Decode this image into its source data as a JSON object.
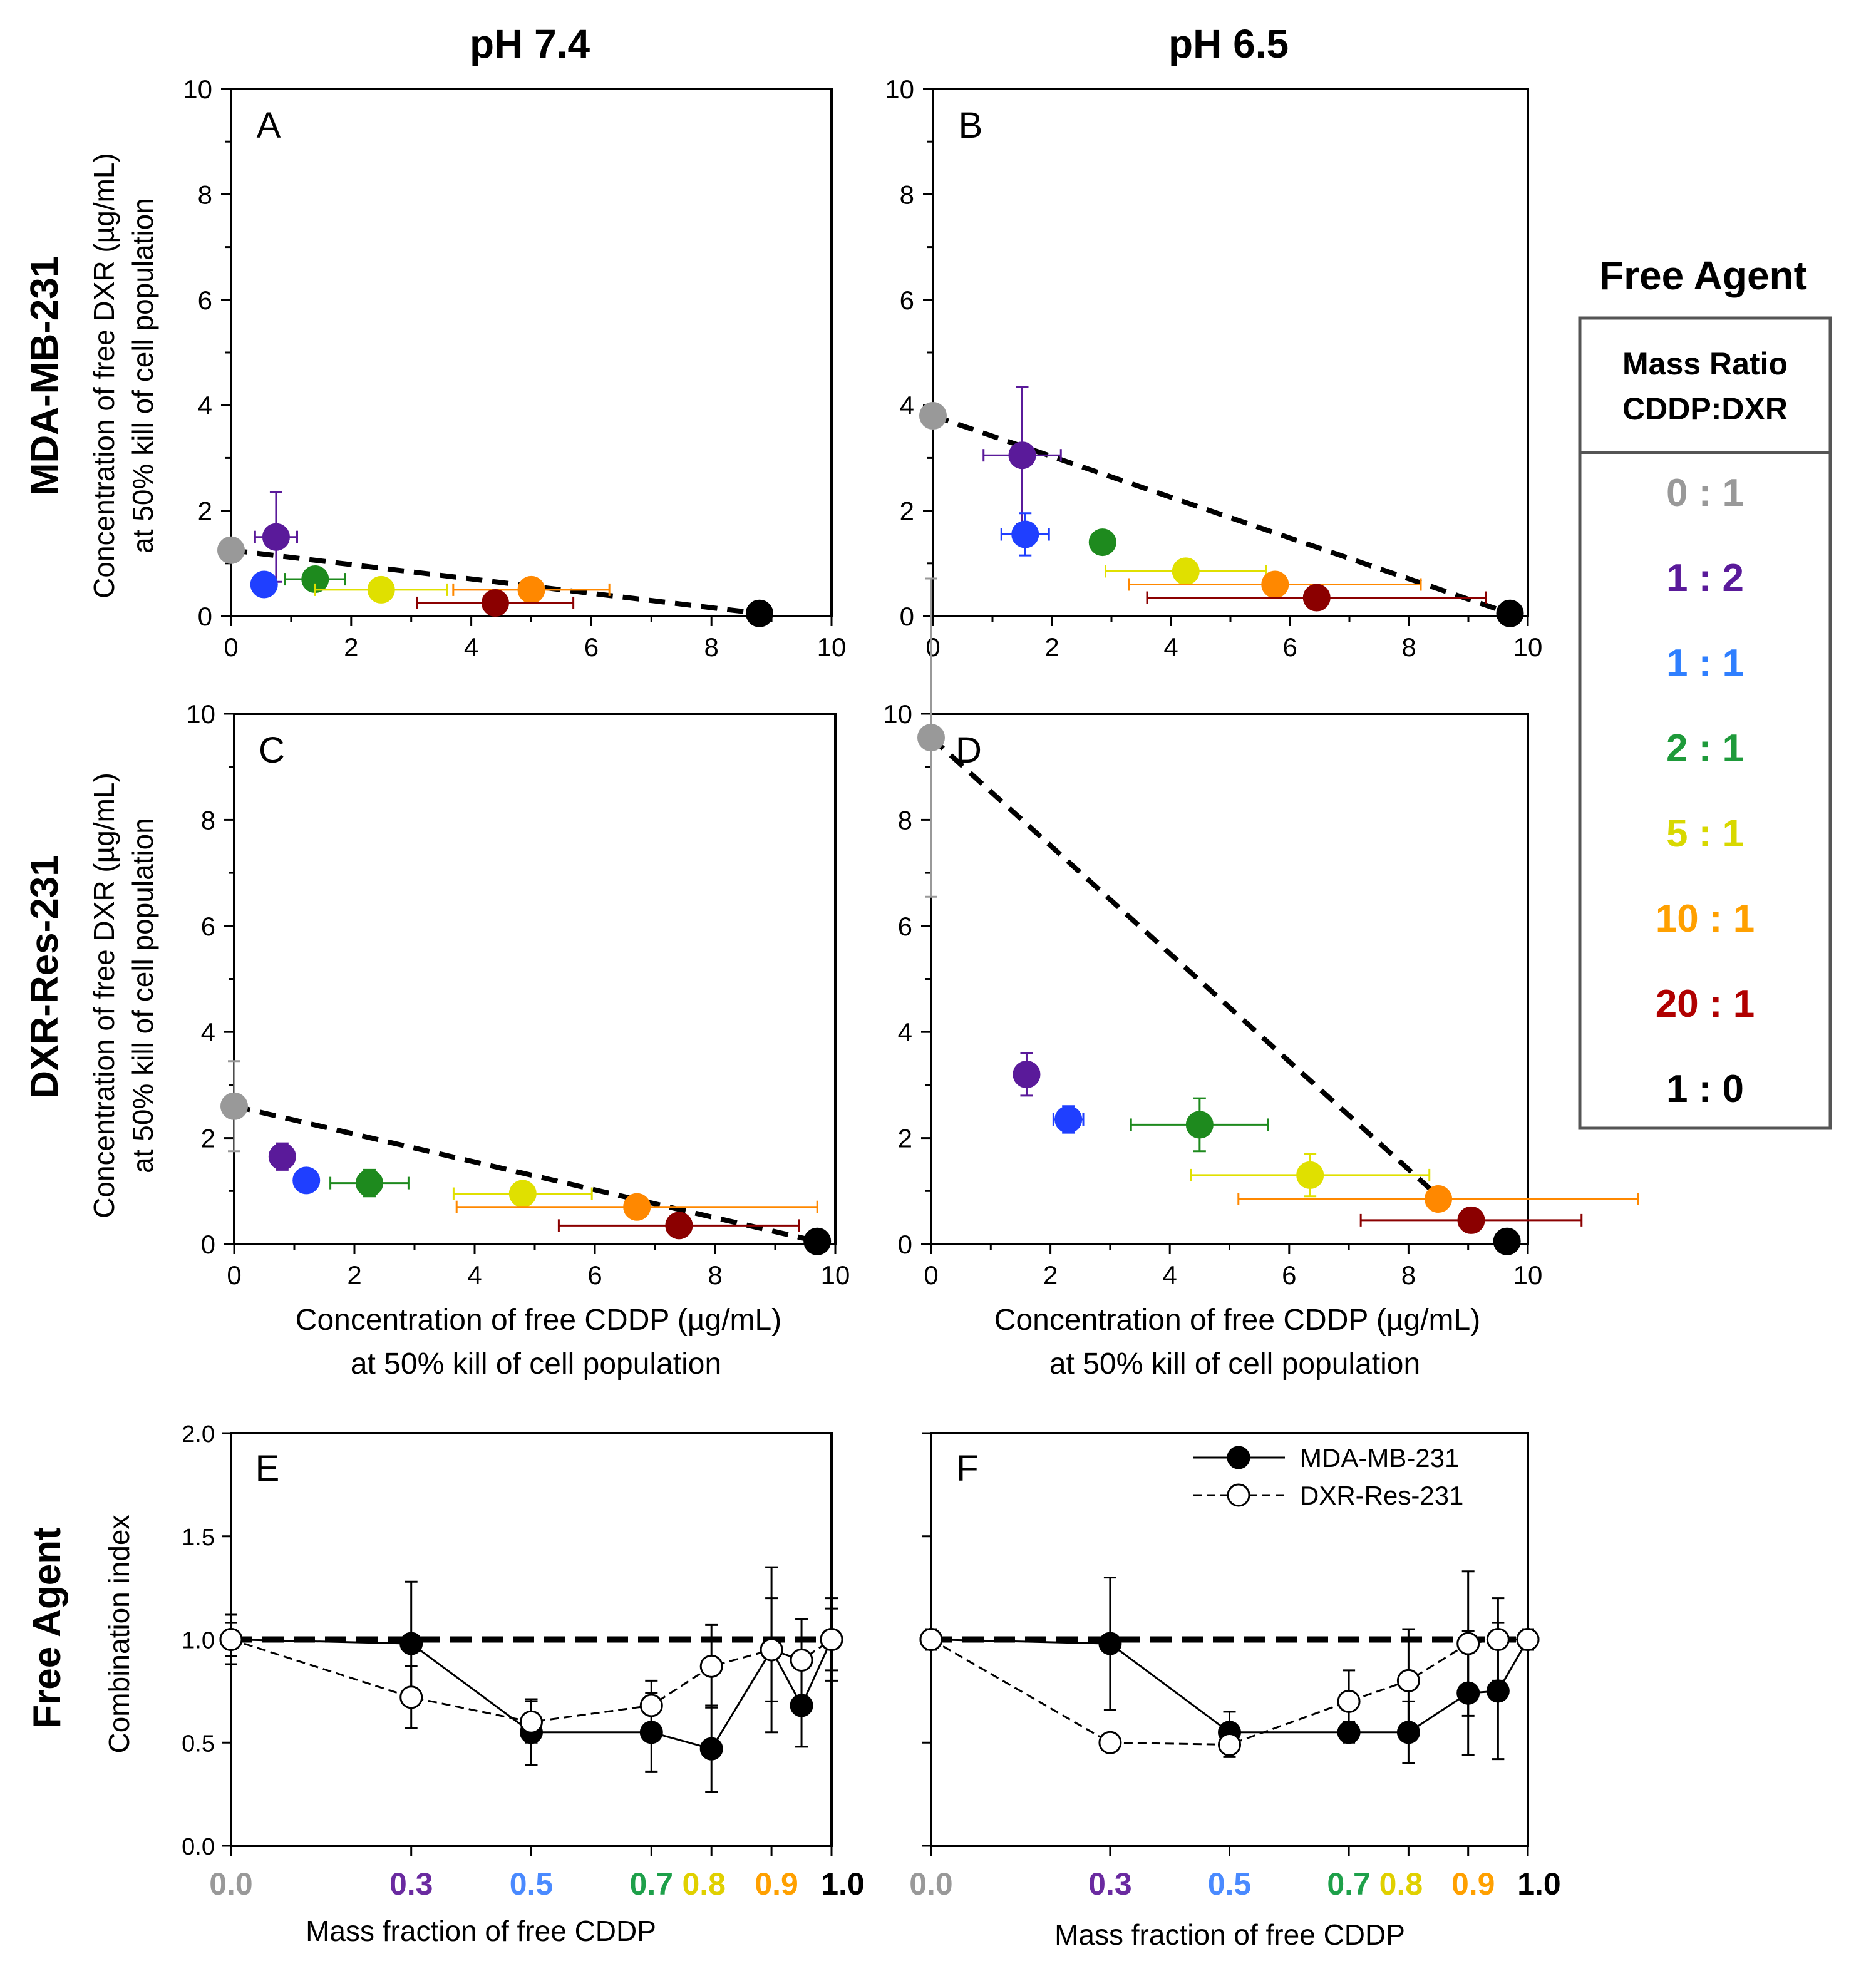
{
  "column_headers": [
    "pH 7.4",
    "pH 6.5"
  ],
  "row_headers": [
    "MDA-MB-231",
    "DXR-Res-231",
    "Free Agent"
  ],
  "colors": {
    "0:1": "#999999",
    "1:2": "#5a1a9a",
    "1:1": "#1f3fff",
    "2:1": "#1e8a1e",
    "5:1": "#e0e000",
    "10:1": "#ff8800",
    "20:1": "#8b0000",
    "1:0": "#000000"
  },
  "legend": {
    "title": "Free Agent",
    "header_line1": "Mass Ratio",
    "header_line2": "CDDP:DXR",
    "entries": [
      {
        "label": "0 : 1",
        "color": "#999999"
      },
      {
        "label": "1 : 2",
        "color": "#5a1a9a"
      },
      {
        "label": "1 : 1",
        "color": "#2f7fff"
      },
      {
        "label": "2 : 1",
        "color": "#1e9a3a"
      },
      {
        "label": "5 : 1",
        "color": "#d8d800"
      },
      {
        "label": "10 : 1",
        "color": "#ffa000"
      },
      {
        "label": "20 : 1",
        "color": "#b00000"
      },
      {
        "label": "1 : 0",
        "color": "#000000"
      }
    ]
  },
  "iso_axes": {
    "xlabel_line1": "Concentration of free CDDP (µg/mL)",
    "xlabel_line2": "at 50% kill of cell population",
    "ylabel_line1": "Concentration of free DXR (µg/mL)",
    "ylabel_line2": "at 50% kill of cell population",
    "ticks": [
      "0",
      "2",
      "4",
      "6",
      "8",
      "10"
    ]
  },
  "ci_axes": {
    "xlabel": "Mass fraction of free CDDP",
    "ylabel": "Combination index",
    "yticks": [
      "0.0",
      "0.5",
      "1.0",
      "1.5",
      "2.0"
    ],
    "xticks": [
      {
        "label": "0.0",
        "value": 0.0,
        "color": "#999999"
      },
      {
        "label": "0.3",
        "value": 0.3,
        "color": "#6a2aa0"
      },
      {
        "label": "0.5",
        "value": 0.5,
        "color": "#4a8aff"
      },
      {
        "label": "0.7",
        "value": 0.7,
        "color": "#1ea04a"
      },
      {
        "label": "0.8",
        "value": 0.8,
        "color": "#e0d000"
      },
      {
        "label": "0.9",
        "value": 0.9,
        "color": "#ffa000"
      },
      {
        "label": "1.0",
        "value": 1.0,
        "color": "#000000"
      }
    ],
    "legend": [
      "MDA-MB-231",
      "DXR-Res-231"
    ]
  },
  "chart_data": [
    {
      "panel": "A",
      "type": "scatter",
      "title": "pH 7.4 / MDA-MB-231",
      "xlim": [
        0,
        10
      ],
      "ylim": [
        0,
        10
      ],
      "additivity_line": [
        [
          0,
          1.25
        ],
        [
          8.8,
          0.05
        ]
      ],
      "points": [
        {
          "ratio": "0:1",
          "x": 0.0,
          "y": 1.25,
          "xerr": 0,
          "yerr": 0
        },
        {
          "ratio": "1:2",
          "x": 0.75,
          "y": 1.5,
          "xerr": 0.35,
          "yerr": 0.85
        },
        {
          "ratio": "1:1",
          "x": 0.55,
          "y": 0.6,
          "xerr": 0.15,
          "yerr": 0.1
        },
        {
          "ratio": "2:1",
          "x": 1.4,
          "y": 0.7,
          "xerr": 0.5,
          "yerr": 0.12
        },
        {
          "ratio": "5:1",
          "x": 2.5,
          "y": 0.5,
          "xerr": 1.1,
          "yerr": 0.08
        },
        {
          "ratio": "10:1",
          "x": 5.0,
          "y": 0.5,
          "xerr": 1.3,
          "yerr": 0.07
        },
        {
          "ratio": "20:1",
          "x": 4.4,
          "y": 0.25,
          "xerr": 1.3,
          "yerr": 0.04
        },
        {
          "ratio": "1:0",
          "x": 8.8,
          "y": 0.05,
          "xerr": 0,
          "yerr": 0
        }
      ]
    },
    {
      "panel": "B",
      "type": "scatter",
      "title": "pH 6.5 / MDA-MB-231",
      "xlim": [
        0,
        10
      ],
      "ylim": [
        0,
        10
      ],
      "additivity_line": [
        [
          0,
          3.8
        ],
        [
          9.7,
          0.05
        ]
      ],
      "points": [
        {
          "ratio": "0:1",
          "x": 0.0,
          "y": 3.8,
          "xerr": 0,
          "yerr": 0.15
        },
        {
          "ratio": "1:2",
          "x": 1.5,
          "y": 3.05,
          "xerr": 0.65,
          "yerr": 1.3
        },
        {
          "ratio": "1:1",
          "x": 1.55,
          "y": 1.55,
          "xerr": 0.4,
          "yerr": 0.4
        },
        {
          "ratio": "2:1",
          "x": 2.85,
          "y": 1.4,
          "xerr": 0,
          "yerr": 0.1
        },
        {
          "ratio": "5:1",
          "x": 4.25,
          "y": 0.85,
          "xerr": 1.35,
          "yerr": 0.1
        },
        {
          "ratio": "10:1",
          "x": 5.75,
          "y": 0.6,
          "xerr": 2.45,
          "yerr": 0.1
        },
        {
          "ratio": "20:1",
          "x": 6.45,
          "y": 0.35,
          "xerr": 2.85,
          "yerr": 0.05
        },
        {
          "ratio": "1:0",
          "x": 9.7,
          "y": 0.05,
          "xerr": 0,
          "yerr": 0
        }
      ]
    },
    {
      "panel": "C",
      "type": "scatter",
      "title": "pH 7.4 / DXR-Res-231",
      "xlim": [
        0,
        10
      ],
      "ylim": [
        0,
        10
      ],
      "additivity_line": [
        [
          0,
          2.6
        ],
        [
          9.7,
          0.05
        ]
      ],
      "points": [
        {
          "ratio": "0:1",
          "x": 0.0,
          "y": 2.6,
          "xerr": 0,
          "yerr": 0.85
        },
        {
          "ratio": "1:2",
          "x": 0.8,
          "y": 1.65,
          "xerr": 0,
          "yerr": 0.25
        },
        {
          "ratio": "1:1",
          "x": 1.2,
          "y": 1.2,
          "xerr": 0,
          "yerr": 0.1
        },
        {
          "ratio": "2:1",
          "x": 2.25,
          "y": 1.15,
          "xerr": 0.65,
          "yerr": 0.25
        },
        {
          "ratio": "5:1",
          "x": 4.8,
          "y": 0.95,
          "xerr": 1.15,
          "yerr": 0.2
        },
        {
          "ratio": "10:1",
          "x": 6.7,
          "y": 0.7,
          "xerr": 3.0,
          "yerr": 0.1
        },
        {
          "ratio": "20:1",
          "x": 7.4,
          "y": 0.35,
          "xerr": 2.0,
          "yerr": 0.05
        },
        {
          "ratio": "1:0",
          "x": 9.7,
          "y": 0.05,
          "xerr": 0,
          "yerr": 0
        }
      ]
    },
    {
      "panel": "D",
      "type": "scatter",
      "title": "pH 6.5 / DXR-Res-231",
      "xlim": [
        0,
        10
      ],
      "ylim": [
        0,
        10
      ],
      "additivity_line": [
        [
          0,
          9.55
        ],
        [
          8.5,
          0.9
        ]
      ],
      "points": [
        {
          "ratio": "0:1",
          "x": 0.0,
          "y": 9.55,
          "xerr": 0,
          "yerr": 3.0
        },
        {
          "ratio": "1:2",
          "x": 1.6,
          "y": 3.2,
          "xerr": 0,
          "yerr": 0.4
        },
        {
          "ratio": "1:1",
          "x": 2.3,
          "y": 2.35,
          "xerr": 0.25,
          "yerr": 0.25
        },
        {
          "ratio": "2:1",
          "x": 4.5,
          "y": 2.25,
          "xerr": 1.15,
          "yerr": 0.5
        },
        {
          "ratio": "5:1",
          "x": 6.35,
          "y": 1.3,
          "xerr": 2.0,
          "yerr": 0.4
        },
        {
          "ratio": "10:1",
          "x": 8.5,
          "y": 0.85,
          "xerr": 3.35,
          "yerr": 0.1
        },
        {
          "ratio": "20:1",
          "x": 9.05,
          "y": 0.45,
          "xerr": 1.85,
          "yerr": 0.05
        },
        {
          "ratio": "1:0",
          "x": 9.65,
          "y": 0.05,
          "xerr": 0,
          "yerr": 0
        }
      ]
    },
    {
      "panel": "E",
      "type": "line",
      "title": "Free Agent / pH 7.4",
      "xlabel": "Mass fraction of free CDDP",
      "ylabel": "Combination index",
      "xlim": [
        0,
        1
      ],
      "ylim": [
        0,
        2
      ],
      "reference_line": 1.0,
      "series": [
        {
          "name": "MDA-MB-231",
          "marker": "filled",
          "x": [
            0.0,
            0.3,
            0.5,
            0.7,
            0.8,
            0.9,
            0.95,
            1.0
          ],
          "y": [
            1.0,
            0.98,
            0.55,
            0.55,
            0.47,
            0.95,
            0.68,
            1.0
          ],
          "err": [
            0.12,
            0.3,
            0.16,
            0.19,
            0.21,
            0.4,
            0.2,
            0.2
          ]
        },
        {
          "name": "DXR-Res-231",
          "marker": "open",
          "x": [
            0.0,
            0.3,
            0.5,
            0.7,
            0.8,
            0.9,
            0.95,
            1.0
          ],
          "y": [
            1.0,
            0.72,
            0.6,
            0.68,
            0.87,
            0.95,
            0.9,
            1.0
          ],
          "err": [
            0.08,
            0.15,
            0.1,
            0.12,
            0.2,
            0.25,
            0.2,
            0.15
          ]
        }
      ]
    },
    {
      "panel": "F",
      "type": "line",
      "title": "Free Agent / pH 6.5",
      "xlabel": "Mass fraction of free CDDP",
      "ylabel": "Combination index",
      "xlim": [
        0,
        1
      ],
      "ylim": [
        0,
        2
      ],
      "reference_line": 1.0,
      "series": [
        {
          "name": "MDA-MB-231",
          "marker": "filled",
          "x": [
            0.0,
            0.3,
            0.5,
            0.7,
            0.8,
            0.9,
            0.95,
            1.0
          ],
          "y": [
            1.0,
            0.98,
            0.55,
            0.55,
            0.55,
            0.74,
            0.75,
            1.0
          ],
          "err": [
            0.05,
            0.32,
            0.1,
            0.05,
            0.15,
            0.3,
            0.33,
            0.04
          ]
        },
        {
          "name": "DXR-Res-231",
          "marker": "open",
          "x": [
            0.0,
            0.3,
            0.5,
            0.7,
            0.8,
            0.9,
            0.95,
            1.0
          ],
          "y": [
            1.0,
            0.5,
            0.49,
            0.7,
            0.8,
            0.98,
            1.0,
            1.0
          ],
          "err": [
            0.05,
            0.02,
            0.06,
            0.15,
            0.25,
            0.35,
            0.2,
            0.05
          ]
        }
      ]
    }
  ]
}
